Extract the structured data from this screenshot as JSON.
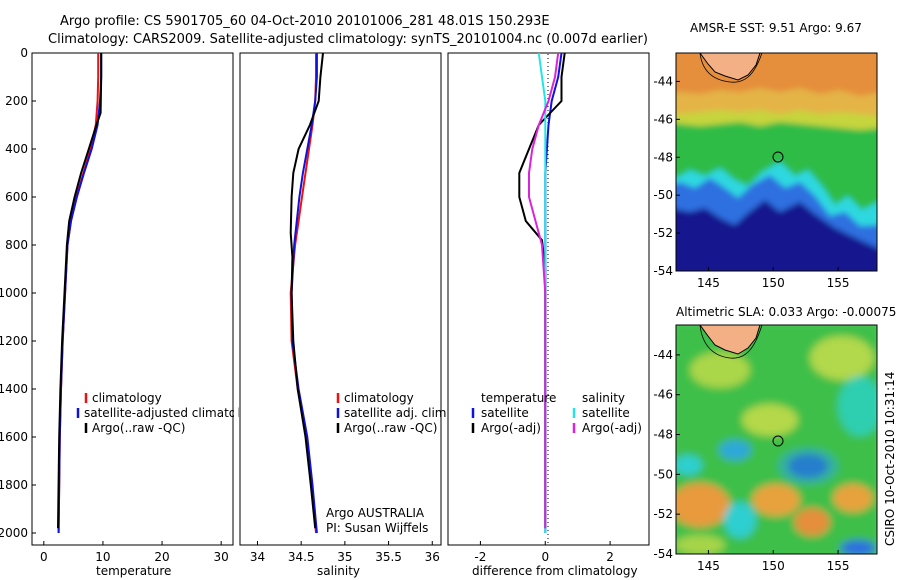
{
  "header": {
    "line1": "Argo profile: CS 5901705_60 04-Oct-2010 20101006_281 48.01S 150.293E",
    "line2": "Climatology: CARS2009. Satellite-adjusted climatology: synTS_20101004.nc (0.007d earlier)"
  },
  "side_caption": "CSIRO 10-Oct-2010 10:31:14",
  "colors": {
    "climatology": "#ee1111",
    "satellite": "#1111dd",
    "argo": "#000000",
    "sal_satellite": "#22e6e6",
    "sal_argo": "#dd22dd"
  },
  "chart_data": [
    {
      "id": "temperature",
      "type": "line",
      "xlabel": "temperature",
      "ylabel": "",
      "xlim": [
        -2,
        32
      ],
      "ylim": [
        2050,
        0
      ],
      "xticks": [
        "0",
        "10",
        "20",
        "30"
      ],
      "yticks": [
        "0",
        "200",
        "400",
        "600",
        "800",
        "1000",
        "1200",
        "1400",
        "1600",
        "1800",
        "2000"
      ],
      "legend": {
        "position": "lower-right",
        "entries": [
          "climatology",
          "satellite-adjusted climatology",
          "Argo(..raw -QC)"
        ]
      },
      "series": [
        {
          "name": "climatology",
          "color": "#ee1111",
          "x": [
            9.2,
            9.2,
            9.1,
            8.8,
            7.9,
            6.7,
            5.5,
            4.6,
            4.0,
            3.6,
            3.2,
            2.9,
            2.7,
            2.5
          ],
          "y": [
            0,
            100,
            200,
            300,
            400,
            500,
            600,
            700,
            800,
            1000,
            1200,
            1400,
            1600,
            2000
          ]
        },
        {
          "name": "satellite-adjusted climatology",
          "color": "#1111dd",
          "x": [
            9.7,
            9.7,
            9.5,
            9.1,
            8.1,
            6.8,
            5.6,
            4.6,
            4.0,
            3.6,
            3.2,
            2.9,
            2.7,
            2.5
          ],
          "y": [
            0,
            100,
            200,
            300,
            400,
            500,
            600,
            700,
            800,
            1000,
            1200,
            1400,
            1600,
            2000
          ]
        },
        {
          "name": "Argo(..raw -QC)",
          "color": "#000000",
          "x": [
            9.7,
            9.7,
            9.6,
            8.9,
            7.6,
            6.3,
            5.2,
            4.3,
            3.9,
            3.5,
            3.1,
            2.8,
            2.6,
            2.4
          ],
          "y": [
            0,
            100,
            250,
            300,
            400,
            500,
            600,
            700,
            800,
            1000,
            1200,
            1400,
            1600,
            1980
          ]
        }
      ]
    },
    {
      "id": "salinity",
      "type": "line",
      "xlabel": "salinity",
      "ylabel": "",
      "xlim": [
        33.8,
        36.1
      ],
      "ylim": [
        2050,
        0
      ],
      "xticks": [
        "34",
        "34.5",
        "35",
        "35.5",
        "36"
      ],
      "legend": {
        "position": "lower-right",
        "entries": [
          "climatology",
          "satellite adj. clim.",
          "Argo(..raw -QC)"
        ]
      },
      "annotations": [
        "Argo AUSTRALIA",
        "PI: Susan Wijffels"
      ],
      "series": [
        {
          "name": "climatology",
          "color": "#ee1111",
          "x": [
            34.67,
            34.67,
            34.66,
            34.63,
            34.59,
            34.55,
            34.51,
            34.47,
            34.43,
            34.38,
            34.39,
            34.46,
            34.56,
            34.62,
            34.67
          ],
          "y": [
            0,
            100,
            200,
            300,
            400,
            500,
            600,
            700,
            800,
            1000,
            1200,
            1400,
            1600,
            1800,
            2000
          ]
        },
        {
          "name": "satellite adj. clim.",
          "color": "#1111dd",
          "x": [
            34.68,
            34.68,
            34.66,
            34.62,
            34.57,
            34.52,
            34.48,
            34.45,
            34.42,
            34.39,
            34.4,
            34.47,
            34.57,
            34.63,
            34.68
          ],
          "y": [
            0,
            100,
            200,
            300,
            400,
            500,
            600,
            700,
            800,
            1000,
            1200,
            1400,
            1600,
            1800,
            2000
          ]
        },
        {
          "name": "Argo(..raw -QC)",
          "color": "#000000",
          "x": [
            34.75,
            34.72,
            34.7,
            34.6,
            34.47,
            34.41,
            34.39,
            34.38,
            34.4,
            34.39,
            34.41,
            34.46,
            34.55,
            34.61,
            34.66
          ],
          "y": [
            0,
            100,
            200,
            300,
            400,
            500,
            600,
            750,
            850,
            1000,
            1200,
            1400,
            1600,
            1800,
            1980
          ]
        }
      ]
    },
    {
      "id": "difference",
      "type": "line",
      "xlabel": "difference from climatology",
      "ylabel": "",
      "xlim": [
        -3,
        3.2
      ],
      "ylim": [
        2050,
        0
      ],
      "xticks": [
        "-2",
        "0",
        "2"
      ],
      "legend": {
        "position": "lower-right",
        "groups": [
          {
            "title": "temperature",
            "entries": [
              "satellite",
              "Argo(-adj)"
            ]
          },
          {
            "title": "salinity",
            "entries": [
              "satellite",
              "Argo(-adj)"
            ]
          }
        ]
      },
      "series": [
        {
          "name": "temperature satellite",
          "color": "#1111dd",
          "x": [
            0.5,
            0.4,
            0.2,
            0.1,
            0.05,
            0.0,
            0.0,
            0.0,
            0.0,
            0.0,
            0.0,
            0.0,
            0.0,
            0.0
          ],
          "y": [
            0,
            100,
            200,
            300,
            400,
            500,
            600,
            800,
            1000,
            1200,
            1400,
            1600,
            1800,
            2000
          ]
        },
        {
          "name": "temperature Argo(-adj)",
          "color": "#000000",
          "x": [
            0.6,
            0.5,
            0.5,
            -0.2,
            -0.5,
            -0.8,
            -0.8,
            -0.6,
            -0.1,
            0.0,
            0.0,
            0.0,
            0.0,
            0.0,
            0.0
          ],
          "y": [
            0,
            100,
            200,
            300,
            400,
            500,
            600,
            700,
            780,
            900,
            1100,
            1300,
            1500,
            1800,
            1980
          ]
        },
        {
          "name": "salinity satellite",
          "color": "#22e6e6",
          "x": [
            -0.2,
            -0.1,
            0.0,
            0.0,
            0.0,
            0.0,
            0.0,
            0.0,
            0.0,
            0.0,
            0.0,
            0.0,
            0.0
          ],
          "y": [
            0,
            100,
            200,
            300,
            400,
            600,
            800,
            1000,
            1200,
            1400,
            1600,
            1800,
            2000
          ]
        },
        {
          "name": "salinity Argo(-adj)",
          "color": "#dd22dd",
          "x": [
            0.4,
            0.3,
            0.1,
            -0.2,
            -0.4,
            -0.5,
            -0.5,
            -0.3,
            -0.1,
            0.0,
            0.0,
            0.0,
            0.0
          ],
          "y": [
            0,
            100,
            200,
            300,
            400,
            500,
            600,
            700,
            800,
            1000,
            1300,
            1600,
            1980
          ]
        }
      ]
    },
    {
      "id": "sst-map",
      "type": "heatmap",
      "title": "AMSR-E SST: 9.51 Argo: 9.67",
      "xlim": [
        142.5,
        158
      ],
      "ylim": [
        -54,
        -42.5
      ],
      "xticks": [
        "145",
        "150",
        "155"
      ],
      "yticks": [
        "-44",
        "-46",
        "-48",
        "-50",
        "-52",
        "-54"
      ],
      "marker": {
        "lon": 150.293,
        "lat": -48.01
      }
    },
    {
      "id": "sla-map",
      "type": "heatmap",
      "title": "Altimetric SLA: 0.033 Argo: -0.00075",
      "xlim": [
        142.5,
        158
      ],
      "ylim": [
        -54,
        -42.5
      ],
      "xticks": [
        "145",
        "150",
        "155"
      ],
      "yticks": [
        "-44",
        "-46",
        "-48",
        "-50",
        "-52",
        "-54"
      ],
      "marker": {
        "lon": 150.293,
        "lat": -48.01
      }
    }
  ]
}
